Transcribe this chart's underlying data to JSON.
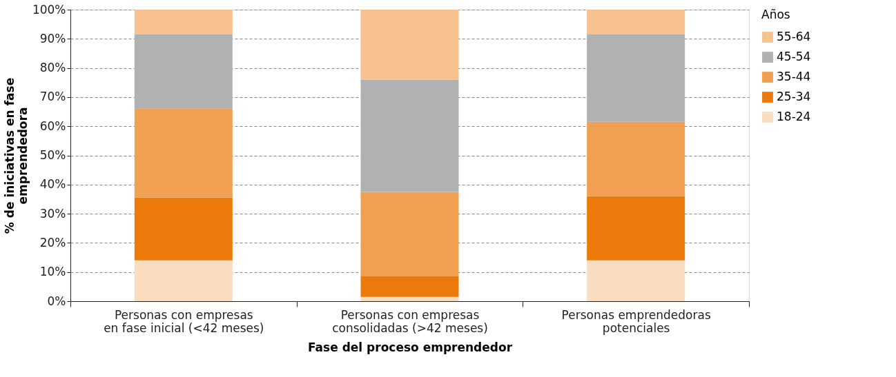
{
  "chart_data": {
    "type": "bar",
    "stacked": true,
    "xlabel": "Fase del proceso emprendedor",
    "ylabel": "% de iniciativas en fase\nemprendedora",
    "legend_title": "Años",
    "categories": [
      "Personas con empresas\nen fase inicial (<42 meses)",
      "Personas con empresas\nconsolidadas (>42 meses)",
      "Personas emprendedoras\npotenciales"
    ],
    "series": [
      {
        "name": "18-24",
        "color": "#fadcc0",
        "values": [
          14,
          1.5,
          14
        ]
      },
      {
        "name": "25-34",
        "color": "#eb7a0a",
        "values": [
          21.5,
          7,
          22
        ]
      },
      {
        "name": "35-44",
        "color": "#f0a050",
        "values": [
          30.5,
          29,
          25.5
        ]
      },
      {
        "name": "45-54",
        "color": "#b0b1b3",
        "values": [
          25.5,
          38.5,
          30
        ]
      },
      {
        "name": "55-64",
        "color": "#f7c190",
        "values": [
          8.5,
          24,
          8.5
        ]
      }
    ],
    "ylim": [
      0,
      100
    ],
    "yticks": [
      {
        "value": 0,
        "label": "0%"
      },
      {
        "value": 10,
        "label": "10%"
      },
      {
        "value": 20,
        "label": "20%"
      },
      {
        "value": 30,
        "label": "30%"
      },
      {
        "value": 40,
        "label": "40%"
      },
      {
        "value": 50,
        "label": "50%"
      },
      {
        "value": 60,
        "label": "60%"
      },
      {
        "value": 70,
        "label": "70%"
      },
      {
        "value": 80,
        "label": "80%"
      },
      {
        "value": 90,
        "label": "90%"
      },
      {
        "value": 100,
        "label": "100%"
      }
    ],
    "grid": "y",
    "legend": "right"
  }
}
